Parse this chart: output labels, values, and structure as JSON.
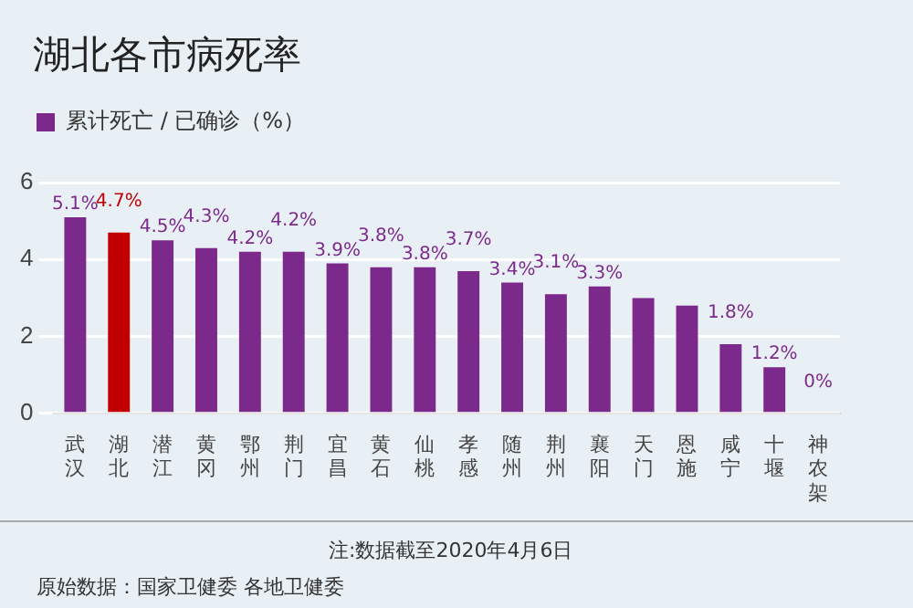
{
  "chart_data": {
    "type": "bar",
    "title": "湖北各市病死率",
    "categories": [
      "武汉",
      "湖北",
      "潜江",
      "黄冈",
      "鄂州",
      "荆门",
      "宜昌",
      "黄石",
      "仙桃",
      "孝感",
      "随州",
      "荆州",
      "襄阳",
      "天门",
      "恩施",
      "咸宁",
      "十堰",
      "神农架"
    ],
    "series": [
      {
        "name": "累计死亡 / 已确诊（%）",
        "color": "#7b2a8c",
        "colors": [
          "#7b2a8c",
          "#c00000",
          "#7b2a8c",
          "#7b2a8c",
          "#7b2a8c",
          "#7b2a8c",
          "#7b2a8c",
          "#7b2a8c",
          "#7b2a8c",
          "#7b2a8c",
          "#7b2a8c",
          "#7b2a8c",
          "#7b2a8c",
          "#7b2a8c",
          "#7b2a8c",
          "#7b2a8c",
          "#7b2a8c",
          "#7b2a8c"
        ],
        "values": [
          5.1,
          4.7,
          4.5,
          4.3,
          4.2,
          4.2,
          3.9,
          3.8,
          3.8,
          3.7,
          3.4,
          3.1,
          3.3,
          3.0,
          2.8,
          1.8,
          1.2,
          0
        ],
        "value_labels": [
          "5.1%",
          "4.7%",
          "4.5%",
          "4.3%",
          "4.2%",
          "4.2%",
          "3.9%",
          "3.8%",
          "3.8%",
          "3.7%",
          "3.4%",
          "3.1%",
          "3.3%",
          null,
          null,
          "1.8%",
          "1.2%",
          "0%"
        ]
      }
    ],
    "ylim": [
      0,
      6
    ],
    "yticks": [
      0,
      2,
      4,
      6
    ],
    "grid": "y",
    "legend": "top left",
    "annotations": [
      "注:数据截至2020年4月6日",
      "原始数据：国家卫健委 各地卫健委"
    ]
  }
}
